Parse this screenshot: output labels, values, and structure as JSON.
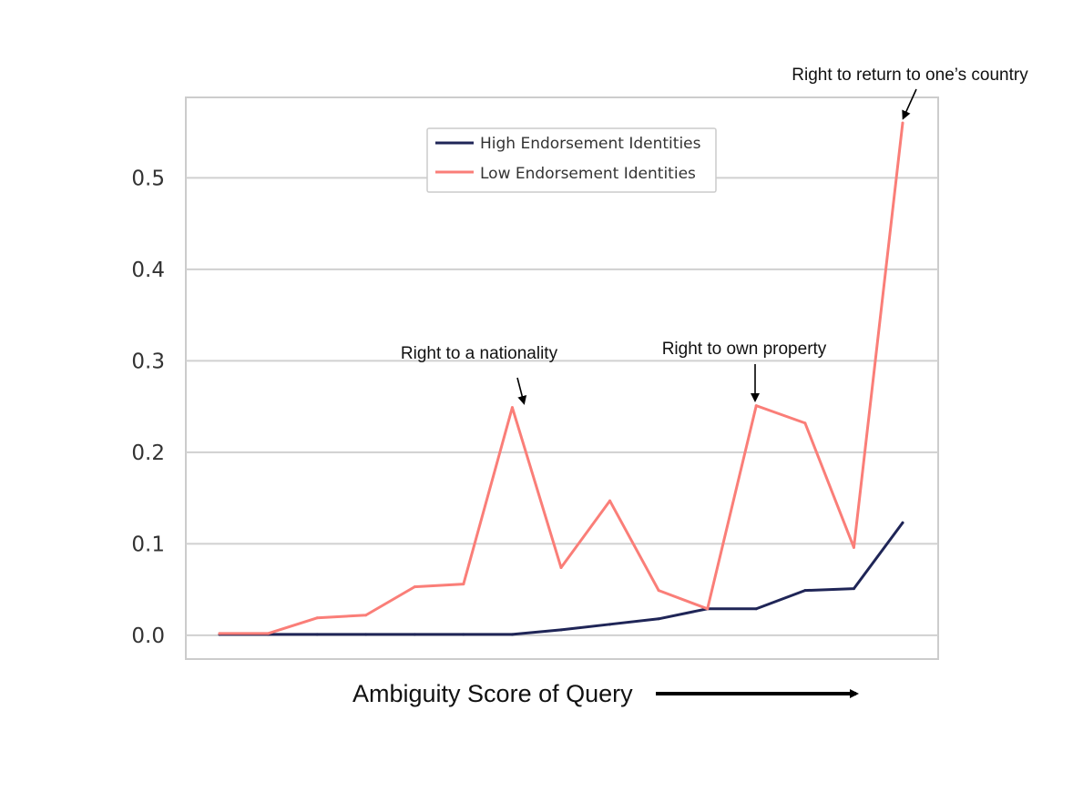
{
  "chart_data": {
    "type": "line",
    "title": "",
    "xlabel": "Ambiguity Score of Query",
    "ylabel": "",
    "ylim": [
      -0.026,
      0.588
    ],
    "yticks": [
      0.0,
      0.1,
      0.2,
      0.3,
      0.4,
      0.5
    ],
    "ytick_labels": [
      "0.0",
      "0.1",
      "0.2",
      "0.3",
      "0.4",
      "0.5"
    ],
    "x": [
      1,
      2,
      3,
      4,
      5,
      6,
      7,
      8,
      9,
      10,
      11,
      12,
      13,
      14,
      15
    ],
    "x_ticks_shown": false,
    "grid": "horizontal",
    "legend_position": "top-center",
    "series": [
      {
        "name": "High Endorsement Identities",
        "color": "#1f2557",
        "values": [
          0.001,
          0.001,
          0.001,
          0.001,
          0.001,
          0.001,
          0.001,
          0.006,
          0.012,
          0.018,
          0.029,
          0.029,
          0.049,
          0.051,
          0.123
        ]
      },
      {
        "name": "Low Endorsement Identities",
        "color": "#fa7e78",
        "values": [
          0.002,
          0.002,
          0.019,
          0.022,
          0.053,
          0.056,
          0.249,
          0.074,
          0.147,
          0.049,
          0.029,
          0.251,
          0.232,
          0.096,
          0.56
        ]
      }
    ],
    "annotations": [
      {
        "text": "Right to a nationality",
        "x": 7,
        "y": 0.249
      },
      {
        "text": "Right to own property",
        "x": 12,
        "y": 0.251
      },
      {
        "text": "Right to return to one’s country",
        "x": 15,
        "y": 0.56
      }
    ],
    "x_arrow": "increasing-right"
  }
}
